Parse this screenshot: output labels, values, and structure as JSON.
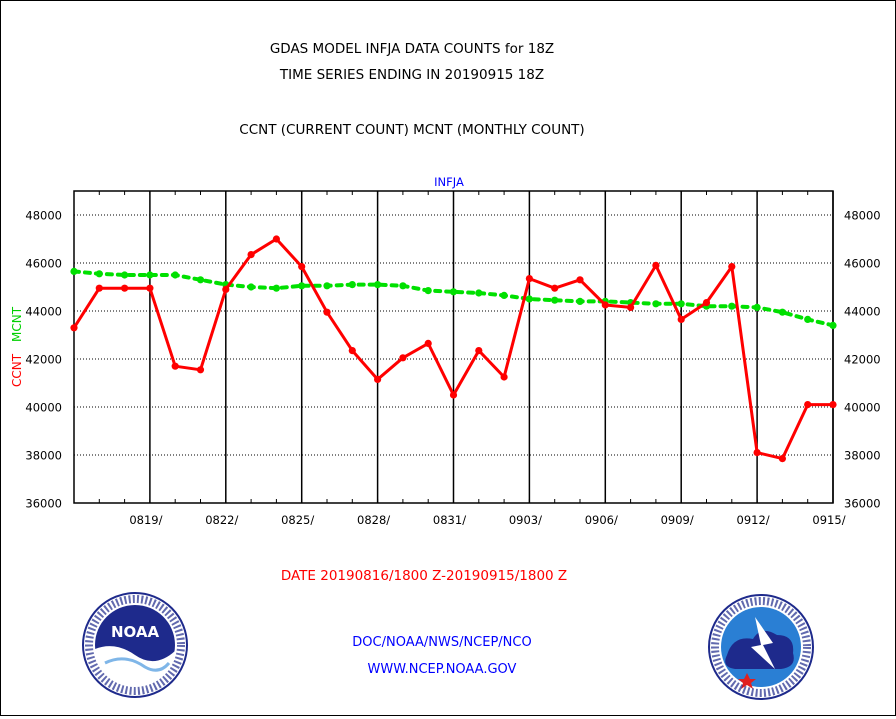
{
  "header": {
    "title_line1": "GDAS MODEL INFJA DATA COUNTS for 18Z",
    "title_line2": "TIME SERIES ENDING IN 20190915 18Z",
    "subtitle": "CCNT (CURRENT COUNT) MCNT (MONTHLY COUNT)"
  },
  "footer": {
    "date_range": "DATE 20190816/1800 Z-20190915/1800 Z",
    "org": "DOC/NOAA/NWS/NCEP/NCO",
    "url": "WWW.NCEP.NOAA.GOV"
  },
  "logos": {
    "noaa_text": "NOAA",
    "noaa_ring": "NATIONAL OCEANIC AND ATMOSPHERIC ADMINISTRATION · U.S. DEPARTMENT OF COMMERCE",
    "nws_ring": "NATIONAL WEATHER SERVICE"
  },
  "colors": {
    "ccnt": "#ff0000",
    "mcnt": "#00e000",
    "title": "#000000",
    "panel_label": "#0000ff",
    "footer_date": "#ff0000",
    "footer_org": "#0000ff"
  },
  "chart_data": {
    "type": "line",
    "panel_label": "INFJA",
    "ylabel_ccnt": "CCNT",
    "ylabel_mcnt": "MCNT",
    "ylim": [
      36000,
      49000
    ],
    "yticks": [
      36000,
      38000,
      40000,
      42000,
      44000,
      46000,
      48000
    ],
    "yticklabels": [
      "36000",
      "38000",
      "40000",
      "42000",
      "44000",
      "46000",
      "48000"
    ],
    "x_day_range": [
      0,
      30
    ],
    "xticks": [
      {
        "day": 3,
        "label": "0819/"
      },
      {
        "day": 6,
        "label": "0822/"
      },
      {
        "day": 9,
        "label": "0825/"
      },
      {
        "day": 12,
        "label": "0828/"
      },
      {
        "day": 15,
        "label": "0831/"
      },
      {
        "day": 18,
        "label": "0903/"
      },
      {
        "day": 21,
        "label": "0906/"
      },
      {
        "day": 24,
        "label": "0909/"
      },
      {
        "day": 27,
        "label": "0912/"
      },
      {
        "day": 30,
        "label": "0915/"
      }
    ],
    "dates": [
      "0816",
      "0817",
      "0818",
      "0819",
      "0820",
      "0821",
      "0822",
      "0823",
      "0824",
      "0825",
      "0826",
      "0827",
      "0828",
      "0829",
      "0830",
      "0831",
      "0901",
      "0902",
      "0903",
      "0904",
      "0905",
      "0906",
      "0907",
      "0908",
      "0909",
      "0910",
      "0911",
      "0912",
      "0913",
      "0914",
      "0915"
    ],
    "series": [
      {
        "name": "CCNT",
        "values": [
          43300,
          44950,
          44950,
          44950,
          41700,
          41550,
          44900,
          46350,
          47000,
          45850,
          43950,
          42350,
          41150,
          42050,
          42650,
          40500,
          42350,
          41250,
          45350,
          44950,
          45300,
          44250,
          44150,
          45900,
          43650,
          44350,
          45850,
          38100,
          37850,
          40100,
          40100
        ]
      },
      {
        "name": "MCNT",
        "values": [
          45650,
          45550,
          45500,
          45500,
          45500,
          45300,
          45100,
          45000,
          44950,
          45050,
          45050,
          45100,
          45100,
          45050,
          44850,
          44800,
          44750,
          44650,
          44500,
          44450,
          44400,
          44400,
          44350,
          44300,
          44300,
          44200,
          44200,
          44150,
          43950,
          43650,
          43400
        ]
      }
    ]
  }
}
